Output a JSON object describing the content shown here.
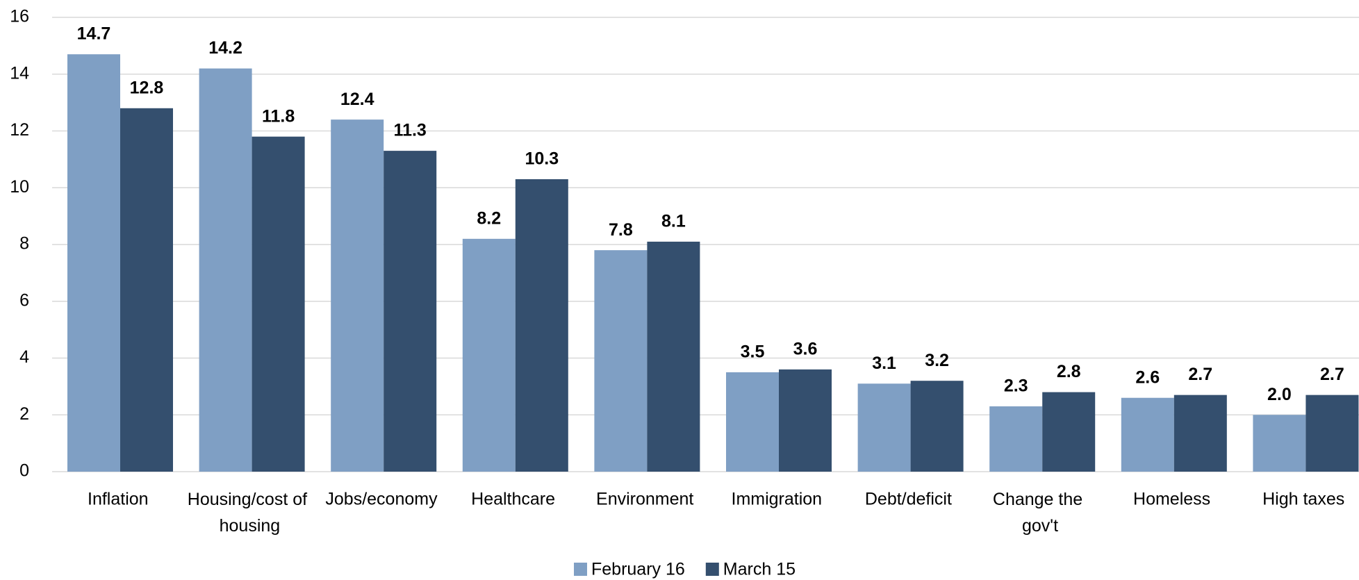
{
  "chart_data": {
    "type": "bar",
    "categories": [
      "Inflation",
      "Housing/cost of housing",
      "Jobs/economy",
      "Healthcare",
      "Environment",
      "Immigration",
      "Debt/deficit",
      "Change the gov't",
      "Homeless",
      "High taxes"
    ],
    "series": [
      {
        "name": "February 16",
        "color": "#7f9fc4",
        "values": [
          14.7,
          14.2,
          12.4,
          8.2,
          7.8,
          3.5,
          3.1,
          2.3,
          2.6,
          2.0
        ],
        "value_labels": [
          "14.7",
          "14.2",
          "12.4",
          "8.2",
          "7.8",
          "3.5",
          "3.1",
          "2.3",
          "2.6",
          "2.0"
        ]
      },
      {
        "name": "March 15",
        "color": "#344f6e",
        "values": [
          12.8,
          11.8,
          11.3,
          10.3,
          8.1,
          3.6,
          3.2,
          2.8,
          2.7,
          2.7
        ],
        "value_labels": [
          "12.8",
          "11.8",
          "11.3",
          "10.3",
          "8.1",
          "3.6",
          "3.2",
          "2.8",
          "2.7",
          "2.7"
        ]
      }
    ],
    "ylim": [
      0,
      16
    ],
    "yticks": [
      0,
      2,
      4,
      6,
      8,
      10,
      12,
      14,
      16
    ],
    "grid": true,
    "legend": "bottom"
  }
}
